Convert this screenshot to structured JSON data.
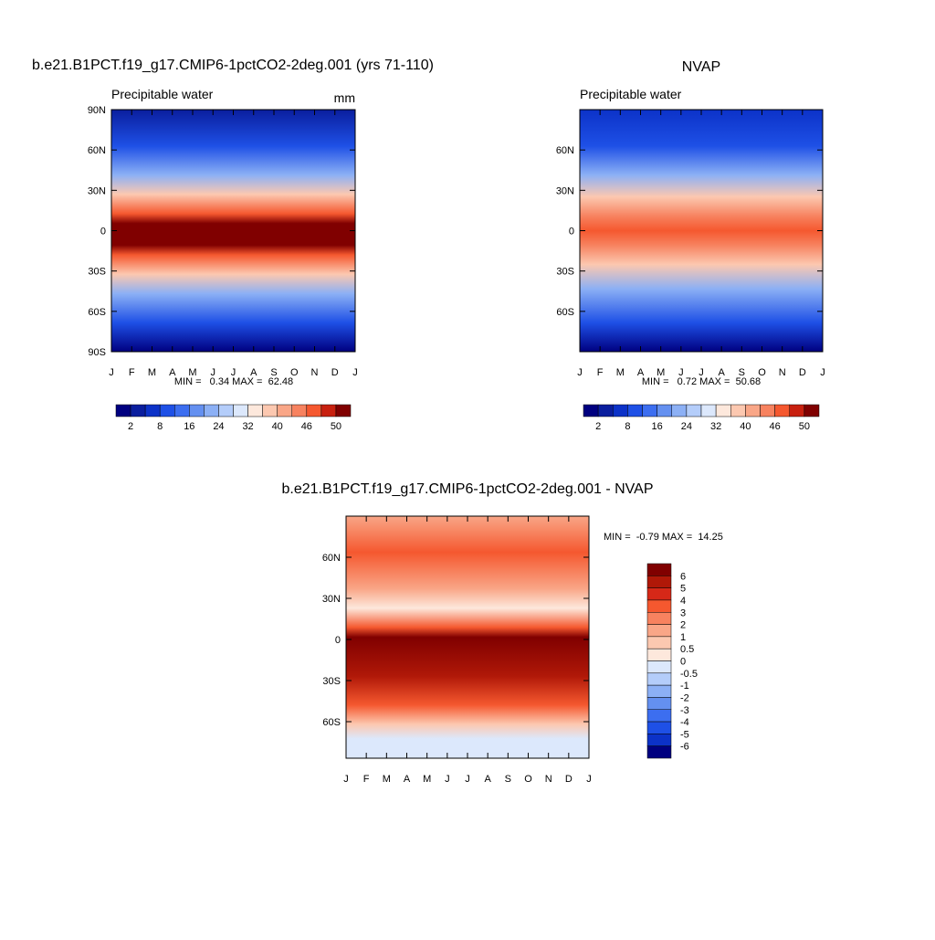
{
  "chart_data": [
    {
      "type": "contour",
      "title": "b.e21.B1PCT.f19_g17.CMIP6-1pctCO2-2deg.001 (yrs 71-110)",
      "subtitle": "Precipitable water",
      "units": "mm",
      "categories": [
        "J",
        "F",
        "M",
        "A",
        "M",
        "J",
        "J",
        "A",
        "S",
        "O",
        "N",
        "D",
        "J"
      ],
      "ylim": [
        -90,
        90
      ],
      "yticks": [
        {
          "value": 90,
          "label": "90N"
        },
        {
          "value": 60,
          "label": "60N"
        },
        {
          "value": 30,
          "label": "30N"
        },
        0,
        {
          "value": -30,
          "label": "30S"
        },
        {
          "value": -60,
          "label": "60S"
        },
        {
          "value": -90,
          "label": "90S"
        }
      ],
      "annotation": "MIN =   0.34 MAX =  62.48",
      "colorbar": {
        "orientation": "horizontal",
        "colors": [
          "#000080",
          "#0a1e9e",
          "#0c32c8",
          "#1e50e6",
          "#3c6ef0",
          "#6490f0",
          "#8cb0f5",
          "#b4cdfa",
          "#dce8fc",
          "#fde8dc",
          "#fcc8b0",
          "#f9a687",
          "#f7825f",
          "#f5582f",
          "#c8200f",
          "#800000"
        ],
        "labels": [
          2,
          8,
          16,
          24,
          32,
          40,
          46,
          50
        ]
      }
    },
    {
      "type": "contour",
      "title": "NVAP",
      "subtitle": "Precipitable water",
      "categories": [
        "J",
        "F",
        "M",
        "A",
        "M",
        "J",
        "J",
        "A",
        "S",
        "O",
        "N",
        "D",
        "J"
      ],
      "ylim": [
        -90,
        90
      ],
      "yticks": [
        {
          "value": 60,
          "label": "60N"
        },
        {
          "value": 30,
          "label": "30N"
        },
        0,
        {
          "value": -30,
          "label": "30S"
        },
        {
          "value": -60,
          "label": "60S"
        }
      ],
      "annotation": "MIN =   0.72 MAX =  50.68",
      "colorbar": {
        "orientation": "horizontal",
        "colors": [
          "#000080",
          "#0a1e9e",
          "#0c32c8",
          "#1e50e6",
          "#3c6ef0",
          "#6490f0",
          "#8cb0f5",
          "#b4cdfa",
          "#dce8fc",
          "#fde8dc",
          "#fcc8b0",
          "#f9a687",
          "#f7825f",
          "#f5582f",
          "#c8200f",
          "#800000"
        ],
        "labels": [
          2,
          8,
          16,
          24,
          32,
          40,
          46,
          50
        ]
      }
    },
    {
      "type": "contour",
      "title": "b.e21.B1PCT.f19_g17.CMIP6-1pctCO2-2deg.001 - NVAP",
      "categories": [
        "J",
        "F",
        "M",
        "A",
        "M",
        "J",
        "J",
        "A",
        "S",
        "O",
        "N",
        "D",
        "J"
      ],
      "ylim": [
        -90,
        90
      ],
      "yticks": [
        {
          "value": 60,
          "label": "60N"
        },
        {
          "value": 30,
          "label": "30N"
        },
        0,
        {
          "value": -30,
          "label": "30S"
        },
        {
          "value": -60,
          "label": "60S"
        }
      ],
      "annotation": "MIN =  -0.79 MAX =  14.25",
      "colorbar": {
        "orientation": "vertical",
        "colors": [
          "#800000",
          "#b01808",
          "#d62818",
          "#f5582f",
          "#f7825f",
          "#f9a687",
          "#fcc8b0",
          "#fde8dc",
          "#dce8fc",
          "#b4cdfa",
          "#8cb0f5",
          "#6490f0",
          "#3c6ef0",
          "#1e50e6",
          "#0c32c8",
          "#000080"
        ],
        "labels": [
          6,
          5,
          4,
          3,
          2,
          1,
          0.5,
          0,
          -0.5,
          -1,
          -2,
          -3,
          -4,
          -5,
          -6
        ]
      }
    }
  ]
}
